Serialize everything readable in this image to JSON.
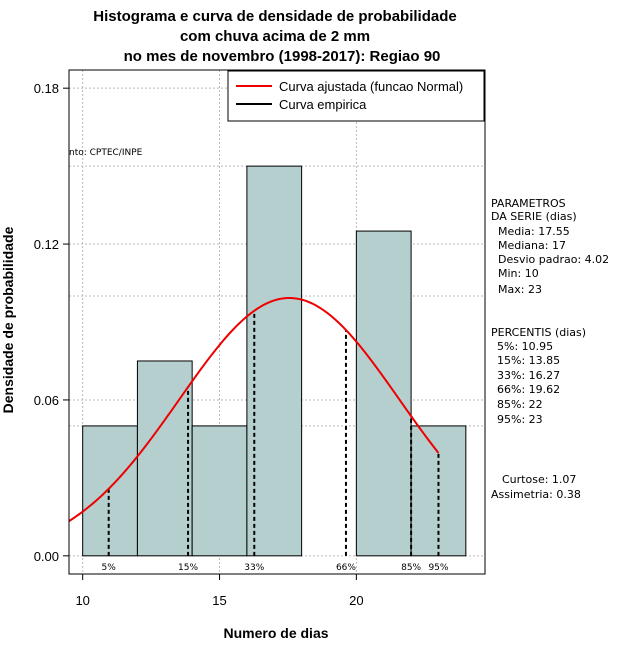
{
  "chart_data": {
    "type": "bar",
    "title_lines": [
      "Histograma e curva de densidade de probabilidade",
      "com chuva acima de 2 mm",
      "no mes de novembro (1998-2017): Regiao 90"
    ],
    "xlabel": "Numero de dias",
    "ylabel": "Densidade de probabilidade",
    "xlim": [
      9.5,
      24.7
    ],
    "ylim": [
      -0.007,
      0.187
    ],
    "x_ticks": [
      10,
      15,
      20
    ],
    "y_ticks": [
      0.0,
      0.06,
      0.12,
      0.18
    ],
    "y_tick_labels": [
      "0.00",
      "0.06",
      "0.12",
      "0.18"
    ],
    "bins": [
      {
        "from": 10,
        "to": 12,
        "density": 0.05
      },
      {
        "from": 12,
        "to": 14,
        "density": 0.075
      },
      {
        "from": 14,
        "to": 16,
        "density": 0.05
      },
      {
        "from": 16,
        "to": 18,
        "density": 0.15
      },
      {
        "from": 18,
        "to": 20,
        "density": 0.0
      },
      {
        "from": 20,
        "to": 22,
        "density": 0.125
      },
      {
        "from": 22,
        "to": 24,
        "density": 0.05
      }
    ],
    "normal_curve": {
      "mean": 17.55,
      "sd": 4.02,
      "x_from": 9.5,
      "x_to": 23.0,
      "color": "#ee0000"
    },
    "percentile_lines": [
      {
        "label": "5%",
        "x": 10.95
      },
      {
        "label": "15%",
        "x": 13.85
      },
      {
        "label": "33%",
        "x": 16.27
      },
      {
        "label": "66%",
        "x": 19.62
      },
      {
        "label": "85%",
        "x": 22
      },
      {
        "label": "95%",
        "x": 23
      }
    ],
    "hgrid_extra": [
      0.05,
      0.1,
      0.15
    ],
    "vgrid": [
      10,
      15,
      20
    ],
    "legend": [
      {
        "label": "Curva ajustada (funcao Normal)",
        "color": "#ee0000"
      },
      {
        "label": "Curva empirica",
        "color": "#000000"
      }
    ],
    "legend_position": "top-right",
    "source_note": "nto: CPTEC/INPE",
    "bar_color": "#b5cfcf"
  },
  "side_panel": {
    "params_title_1": "PARAMETROS",
    "params_title_2": "DA SERIE (dias)",
    "media": "Media: 17.55",
    "mediana": "Mediana: 17",
    "desvio": "Desvio padrao: 4.02",
    "min": "Min: 10",
    "max": "Max: 23",
    "perc_title": "PERCENTIS (dias)",
    "p5": "5%: 10.95",
    "p15": "15%: 13.85",
    "p33": "33%: 16.27",
    "p66": "66%: 19.62",
    "p85": "85%: 22",
    "p95": "95%: 23",
    "curtose": "Curtose: 1.07",
    "assimetria": "Assimetria: 0.38"
  }
}
